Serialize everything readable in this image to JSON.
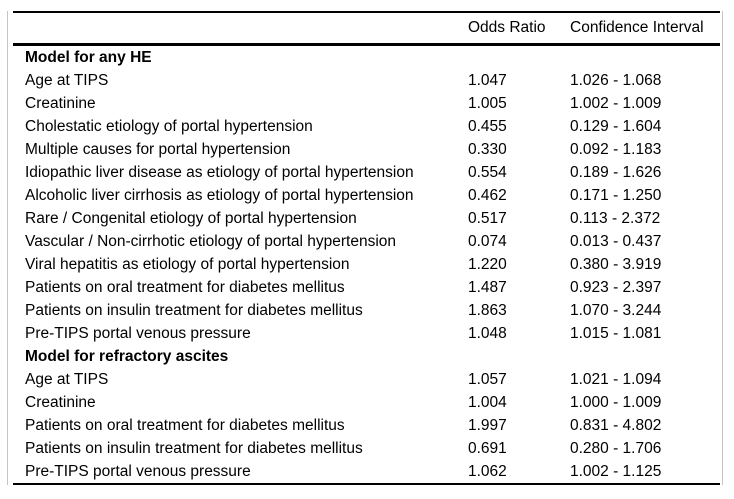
{
  "table": {
    "columns": {
      "label": "",
      "odds_ratio": "Odds Ratio",
      "confidence_interval": "Confidence Interval"
    },
    "sections": [
      {
        "header": "Model for any HE",
        "rows": [
          {
            "label": "Age at TIPS",
            "odds_ratio": "1.047",
            "confidence_interval": "1.026 - 1.068"
          },
          {
            "label": "Creatinine",
            "odds_ratio": "1.005",
            "confidence_interval": "1.002 - 1.009"
          },
          {
            "label": "Cholestatic etiology of portal hypertension",
            "odds_ratio": "0.455",
            "confidence_interval": "0.129 - 1.604"
          },
          {
            "label": "Multiple causes for portal hypertension",
            "odds_ratio": "0.330",
            "confidence_interval": "0.092 - 1.183"
          },
          {
            "label": "Idiopathic liver disease as etiology of portal hypertension",
            "odds_ratio": "0.554",
            "confidence_interval": "0.189 - 1.626"
          },
          {
            "label": "Alcoholic liver cirrhosis as etiology of portal hypertension",
            "odds_ratio": "0.462",
            "confidence_interval": "0.171 - 1.250"
          },
          {
            "label": "Rare / Congenital etiology of portal hypertension",
            "odds_ratio": "0.517",
            "confidence_interval": "0.113 - 2.372"
          },
          {
            "label": "Vascular / Non-cirrhotic etiology of portal hypertension",
            "odds_ratio": "0.074",
            "confidence_interval": "0.013 - 0.437"
          },
          {
            "label": "Viral hepatitis as etiology of portal hypertension",
            "odds_ratio": "1.220",
            "confidence_interval": "0.380 - 3.919"
          },
          {
            "label": "Patients on oral treatment for diabetes mellitus",
            "odds_ratio": "1.487",
            "confidence_interval": "0.923 - 2.397"
          },
          {
            "label": "Patients on insulin treatment for diabetes mellitus",
            "odds_ratio": "1.863",
            "confidence_interval": "1.070 - 3.244"
          },
          {
            "label": "Pre-TIPS portal venous pressure",
            "odds_ratio": "1.048",
            "confidence_interval": "1.015 - 1.081"
          }
        ]
      },
      {
        "header": "Model for refractory ascites",
        "rows": [
          {
            "label": "Age at TIPS",
            "odds_ratio": "1.057",
            "confidence_interval": "1.021 - 1.094"
          },
          {
            "label": "Creatinine",
            "odds_ratio": "1.004",
            "confidence_interval": "1.000 - 1.009"
          },
          {
            "label": "Patients on oral treatment for diabetes mellitus",
            "odds_ratio": "1.997",
            "confidence_interval": "0.831 - 4.802"
          },
          {
            "label": "Patients on insulin treatment for diabetes mellitus",
            "odds_ratio": "0.691",
            "confidence_interval": "0.280 - 1.706"
          },
          {
            "label": "Pre-TIPS portal venous pressure",
            "odds_ratio": "1.062",
            "confidence_interval": "1.002 - 1.125"
          }
        ]
      }
    ],
    "colors": {
      "rule": "#000000",
      "frame": "#c4c4c4",
      "text": "#000000",
      "background": "#ffffff"
    }
  }
}
